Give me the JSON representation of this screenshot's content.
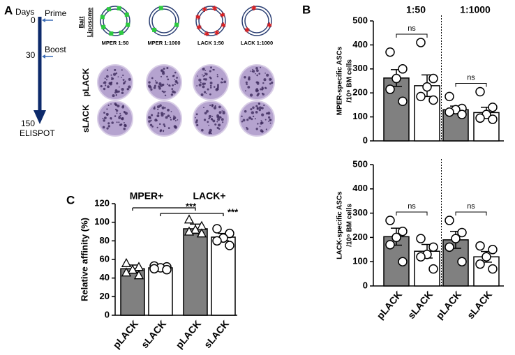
{
  "panel_a": {
    "label": "A",
    "days": "Days",
    "prime": "Prime",
    "day0": "0",
    "boost": "Boost",
    "day30": "30",
    "day150": "150",
    "readout": "ELISPOT",
    "bait": "Bait",
    "liposome": "Liposome",
    "liposomes": [
      "MPER 1:50",
      "MPER 1:1000",
      "LACK 1:50",
      "LACK 1:1000"
    ],
    "rows": [
      "pLACK",
      "sLACK"
    ]
  },
  "chart_data": [
    {
      "type": "bar",
      "panel": "B",
      "ylabel": [
        "MPER-specific ASCs",
        "/10⁶ BM cells"
      ],
      "group_labels": [
        {
          "text": "1:50",
          "between": [
            0,
            1
          ]
        },
        {
          "text": "1:1000",
          "between": [
            2,
            3
          ]
        }
      ],
      "categories": [
        "pLACK",
        "sLACK",
        "pLACK",
        "sLACK"
      ],
      "values": [
        262,
        230,
        130,
        118
      ],
      "errors": [
        35,
        45,
        15,
        22
      ],
      "points": [
        [
          370,
          300,
          260,
          215,
          165
        ],
        [
          410,
          260,
          225,
          185,
          170
        ],
        [
          185,
          135,
          130,
          120,
          110
        ],
        [
          205,
          140,
          110,
          95,
          90
        ]
      ],
      "colors": [
        "#808080",
        "#ffffff",
        "#808080",
        "#ffffff"
      ],
      "markers": [
        "circle",
        "circle",
        "circle",
        "circle"
      ],
      "annotations": [
        {
          "text": "ns",
          "between": [
            0,
            1
          ]
        },
        {
          "text": "ns",
          "between": [
            2,
            3
          ]
        }
      ],
      "divider": true,
      "show_xlabels": false,
      "ylim": [
        0,
        500
      ],
      "yticks": [
        0,
        100,
        200,
        300,
        400,
        500
      ]
    },
    {
      "type": "bar",
      "ylabel": [
        "LACK-specific ASCs",
        "/10⁶ BM cells"
      ],
      "categories": [
        "pLACK",
        "sLACK",
        "pLACK",
        "sLACK"
      ],
      "values": [
        203,
        143,
        190,
        120
      ],
      "errors": [
        35,
        28,
        35,
        22
      ],
      "points": [
        [
          270,
          225,
          200,
          170,
          100
        ],
        [
          195,
          160,
          130,
          120,
          70
        ],
        [
          270,
          220,
          195,
          160,
          100
        ],
        [
          165,
          150,
          120,
          90,
          70
        ]
      ],
      "colors": [
        "#808080",
        "#ffffff",
        "#808080",
        "#ffffff"
      ],
      "markers": [
        "circle",
        "circle",
        "circle",
        "circle"
      ],
      "annotations": [
        {
          "text": "ns",
          "between": [
            0,
            1
          ]
        },
        {
          "text": "ns",
          "between": [
            2,
            3
          ]
        }
      ],
      "divider": true,
      "show_xlabels": true,
      "ylim": [
        0,
        500
      ],
      "yticks": [
        0,
        100,
        200,
        300,
        400,
        500
      ]
    },
    {
      "type": "bar",
      "panel": "C",
      "ylabel": [
        "Relative affinity (%)"
      ],
      "group_labels": [
        {
          "text": "MPER+",
          "between": [
            0,
            1
          ]
        },
        {
          "text": "LACK+",
          "between": [
            2,
            3
          ]
        }
      ],
      "categories": [
        "pLACK",
        "sLACK",
        "pLACK",
        "sLACK"
      ],
      "values": [
        50,
        51,
        93,
        84
      ],
      "errors": [
        4,
        2,
        5,
        4
      ],
      "points": [
        [
          56,
          52,
          49,
          46,
          43
        ],
        [
          53,
          52,
          51,
          50,
          49
        ],
        [
          103,
          96,
          92,
          90,
          88
        ],
        [
          93,
          88,
          83,
          80,
          75
        ]
      ],
      "colors": [
        "#808080",
        "#ffffff",
        "#808080",
        "#ffffff"
      ],
      "markers": [
        "triangle",
        "circle",
        "triangle",
        "circle"
      ],
      "brackets": [
        {
          "text": "***",
          "between": [
            0,
            2
          ]
        },
        {
          "text": "***",
          "between": [
            1,
            3
          ]
        }
      ],
      "divider": false,
      "show_xlabels": true,
      "ylim": [
        0,
        120
      ],
      "yticks": [
        0,
        20,
        40,
        60,
        80,
        100,
        120
      ]
    }
  ]
}
